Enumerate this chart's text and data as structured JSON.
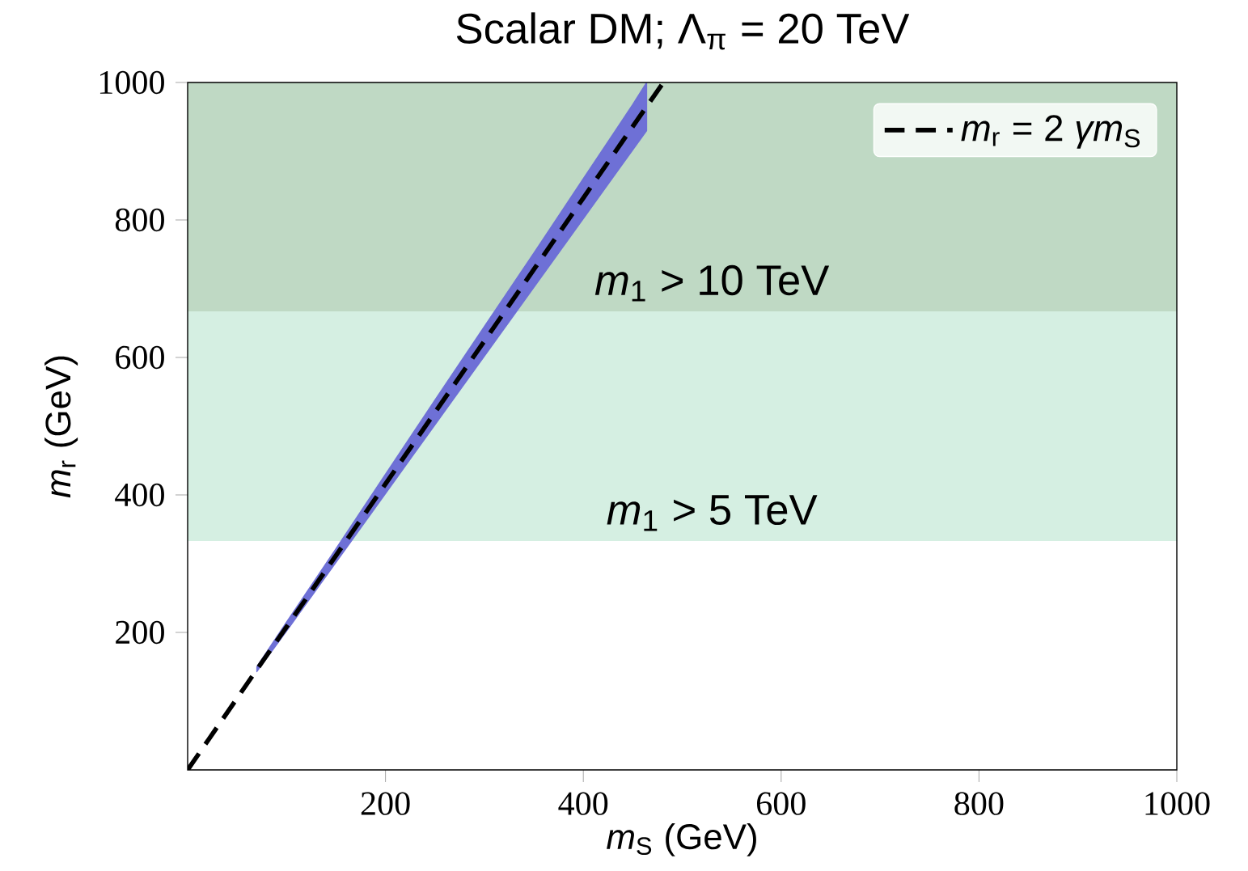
{
  "chart_data": {
    "type": "line",
    "title": "Scalar DM; Λ$_{π}$ = 20 TeV",
    "xlabel": "*m*$_{S}$ (GeV)",
    "ylabel": "*m*$_{r}$ (GeV)",
    "xlim": [
      0,
      1000
    ],
    "ylim": [
      0,
      1000
    ],
    "xticks": [
      200,
      400,
      600,
      800,
      1000
    ],
    "yticks": [
      200,
      400,
      600,
      800,
      1000
    ],
    "grid": false,
    "legend": "top right",
    "line_style": "dashed",
    "marker": "none",
    "series": [
      {
        "name": "*m*$_{r}$ = 2 *γm*$_{S}$",
        "color": "#000000",
        "x": [
          0,
          70,
          100,
          150,
          200,
          250,
          300,
          350,
          400,
          450,
          464,
          481
        ],
        "values": [
          0,
          146,
          208,
          312,
          416,
          520,
          624,
          728,
          832,
          936,
          965,
          1000
        ],
        "lower": [
          null,
          143,
          202,
          302,
          402,
          502,
          602,
          702,
          802,
          902,
          930,
          null
        ],
        "upper": [
          null,
          150,
          215,
          322,
          430,
          538,
          645,
          752,
          860,
          968,
          1000,
          null
        ]
      }
    ],
    "bands": [
      {
        "axis": "y",
        "from": 333,
        "to": 667,
        "label": "*m*$_{1}$ > 5 TeV",
        "color": "#d5efe2"
      },
      {
        "axis": "y",
        "from": 667,
        "to": 1000,
        "label": "*m*$_{1}$ > 10 TeV",
        "color": "#bfd9c4"
      }
    ]
  }
}
